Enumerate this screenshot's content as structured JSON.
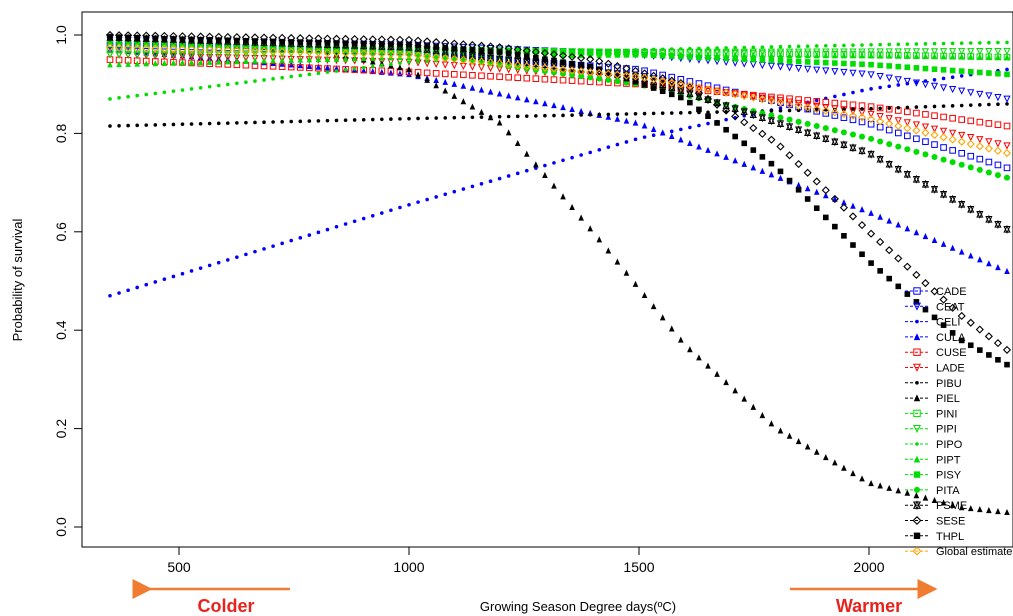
{
  "chart_data": {
    "type": "scatter",
    "title": "",
    "xlabel": "Growing Season Degree days(ºC)",
    "ylabel": "Probability of survival",
    "xlim": [
      350,
      2300
    ],
    "ylim": [
      0,
      1.0
    ],
    "x_ticks": [
      500,
      1000,
      1500,
      2000
    ],
    "y_ticks": [
      "0.0",
      "0.2",
      "0.4",
      "0.6",
      "0.8",
      "1.0"
    ],
    "grid": false,
    "legend_position": "bottom-right",
    "direction_labels": {
      "left": "Colder",
      "right": "Warmer"
    },
    "series": [
      {
        "name": "CADE",
        "color": "#0000ff",
        "marker": "square-open",
        "x": [
          350,
          1000,
          1500,
          2000,
          2300
        ],
        "y": [
          0.98,
          0.965,
          0.93,
          0.82,
          0.73
        ]
      },
      {
        "name": "CEAT",
        "color": "#0000ff",
        "marker": "triangle-down-open",
        "x": [
          350,
          1000,
          1500,
          2000,
          2300
        ],
        "y": [
          0.99,
          0.98,
          0.96,
          0.92,
          0.87
        ]
      },
      {
        "name": "CELI",
        "color": "#0000ff",
        "marker": "dot",
        "x": [
          350,
          1000,
          1500,
          2000,
          2300
        ],
        "y": [
          0.47,
          0.655,
          0.79,
          0.89,
          0.93
        ]
      },
      {
        "name": "CULA",
        "color": "#0000ff",
        "marker": "triangle",
        "x": [
          350,
          1000,
          1500,
          2000,
          2300
        ],
        "y": [
          0.97,
          0.92,
          0.82,
          0.64,
          0.52
        ]
      },
      {
        "name": "CUSE",
        "color": "#ff0000",
        "marker": "square-open",
        "x": [
          350,
          1000,
          1500,
          2000,
          2300
        ],
        "y": [
          0.95,
          0.925,
          0.9,
          0.855,
          0.815
        ]
      },
      {
        "name": "LADE",
        "color": "#ff0000",
        "marker": "triangle-down-open",
        "x": [
          350,
          1000,
          1500,
          2000,
          2300
        ],
        "y": [
          0.96,
          0.945,
          0.91,
          0.84,
          0.775
        ]
      },
      {
        "name": "PIBU",
        "color": "#000000",
        "marker": "dot",
        "x": [
          350,
          1000,
          1500,
          2000,
          2300
        ],
        "y": [
          0.815,
          0.83,
          0.84,
          0.85,
          0.86
        ]
      },
      {
        "name": "PIEL",
        "color": "#000000",
        "marker": "triangle",
        "x": [
          350,
          800,
          1000,
          1200,
          1400,
          1600,
          1800,
          2000,
          2200,
          2300
        ],
        "y": [
          0.99,
          0.97,
          0.93,
          0.82,
          0.6,
          0.37,
          0.2,
          0.09,
          0.04,
          0.03
        ]
      },
      {
        "name": "PINI",
        "color": "#00dd00",
        "marker": "square-open",
        "x": [
          350,
          1000,
          1500,
          2000,
          2300
        ],
        "y": [
          0.97,
          0.97,
          0.965,
          0.96,
          0.955
        ]
      },
      {
        "name": "PIPI",
        "color": "#00dd00",
        "marker": "triangle-down-open",
        "x": [
          350,
          1000,
          1500,
          2000,
          2300
        ],
        "y": [
          0.96,
          0.963,
          0.965,
          0.966,
          0.967
        ]
      },
      {
        "name": "PIPO",
        "color": "#00dd00",
        "marker": "dot",
        "x": [
          350,
          1000,
          1500,
          2000,
          2300
        ],
        "y": [
          0.87,
          0.945,
          0.97,
          0.98,
          0.985
        ]
      },
      {
        "name": "PIPT",
        "color": "#00dd00",
        "marker": "triangle",
        "x": [
          350,
          1000,
          1500,
          2000,
          2300
        ],
        "y": [
          0.94,
          0.955,
          0.96,
          0.958,
          0.955
        ]
      },
      {
        "name": "PISY",
        "color": "#00dd00",
        "marker": "square",
        "x": [
          350,
          1000,
          1500,
          2000,
          2300
        ],
        "y": [
          0.985,
          0.975,
          0.96,
          0.94,
          0.92
        ]
      },
      {
        "name": "PITA",
        "color": "#00dd00",
        "marker": "dot-large",
        "x": [
          350,
          1000,
          1500,
          2000,
          2300
        ],
        "y": [
          0.99,
          0.965,
          0.9,
          0.79,
          0.71
        ]
      },
      {
        "name": "PSME",
        "color": "#000000",
        "marker": "star",
        "x": [
          350,
          1000,
          1500,
          2000,
          2300
        ],
        "y": [
          0.995,
          0.975,
          0.915,
          0.76,
          0.605
        ]
      },
      {
        "name": "SESE",
        "color": "#000000",
        "marker": "diamond-open",
        "x": [
          350,
          1000,
          1200,
          1400,
          1600,
          1800,
          2000,
          2200,
          2300
        ],
        "y": [
          1.0,
          0.99,
          0.975,
          0.95,
          0.9,
          0.78,
          0.6,
          0.43,
          0.36
        ]
      },
      {
        "name": "THPL",
        "color": "#000000",
        "marker": "square",
        "x": [
          350,
          1000,
          1200,
          1400,
          1600,
          1800,
          2000,
          2200,
          2300
        ],
        "y": [
          0.995,
          0.98,
          0.965,
          0.935,
          0.87,
          0.73,
          0.54,
          0.38,
          0.33
        ]
      },
      {
        "name": "Global estimate",
        "color": "#ffa500",
        "marker": "diamond-open",
        "x": [
          350,
          1000,
          1500,
          2000,
          2300
        ],
        "y": [
          0.975,
          0.96,
          0.915,
          0.83,
          0.76
        ]
      }
    ]
  }
}
